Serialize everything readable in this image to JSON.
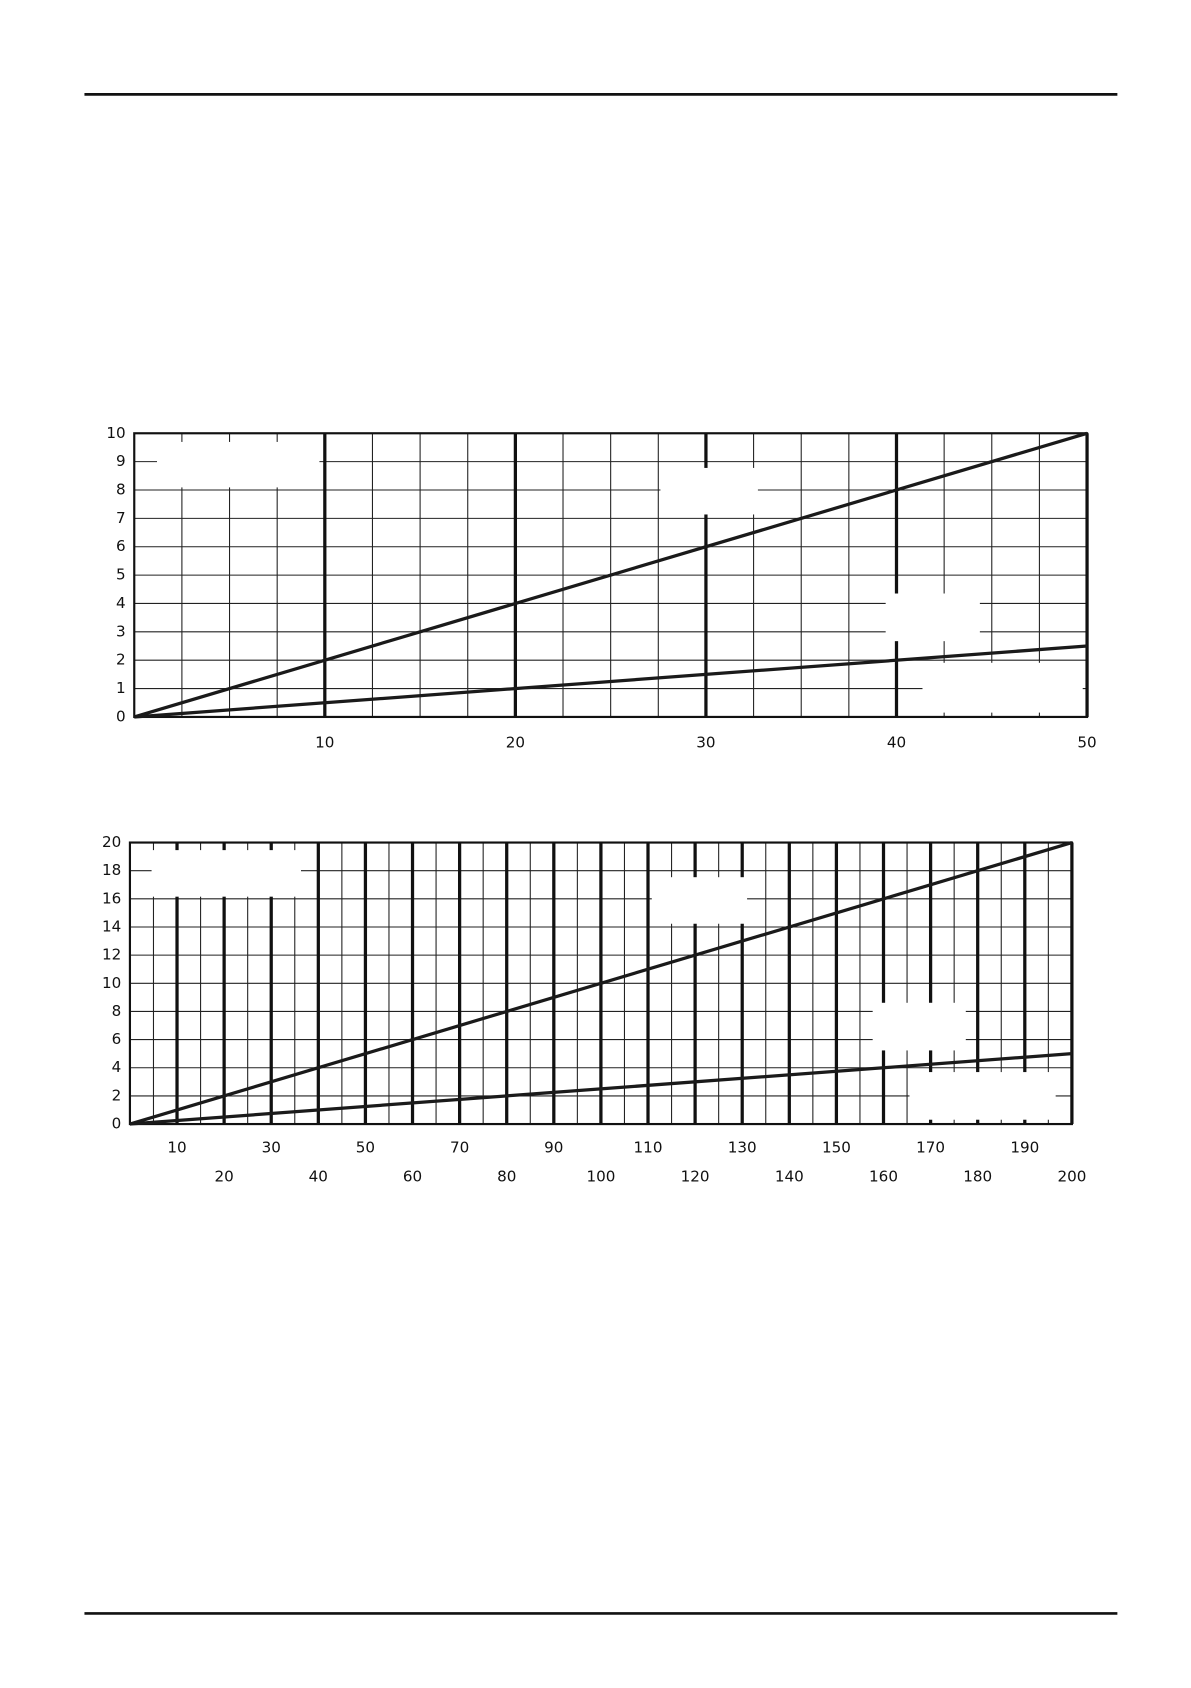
{
  "chart_data": [
    {
      "type": "line",
      "x": [
        0,
        50
      ],
      "xlim": [
        0,
        50
      ],
      "ylim": [
        0,
        10
      ],
      "xticks": [
        10,
        20,
        30,
        40,
        50
      ],
      "yticks": [
        0,
        1,
        2,
        3,
        4,
        5,
        6,
        7,
        8,
        9,
        10
      ],
      "grid": true,
      "series": [
        {
          "color": "#1a1a1a",
          "values": [
            0,
            10
          ]
        },
        {
          "color": "#1a1a1a",
          "values": [
            0,
            2.5
          ]
        }
      ]
    },
    {
      "type": "line",
      "x": [
        0,
        200
      ],
      "xlim": [
        0,
        200
      ],
      "ylim": [
        0,
        20
      ],
      "xticks": [
        10,
        20,
        30,
        40,
        50,
        60,
        70,
        80,
        90,
        100,
        110,
        120,
        130,
        140,
        150,
        160,
        170,
        180,
        190,
        200
      ],
      "yticks": [
        0,
        2,
        4,
        6,
        8,
        10,
        12,
        14,
        16,
        18,
        20
      ],
      "grid": true,
      "series": [
        {
          "color": "#1a1a1a",
          "values": [
            0,
            20
          ]
        },
        {
          "color": "#1a1a1a",
          "values": [
            0,
            5
          ]
        }
      ]
    }
  ]
}
